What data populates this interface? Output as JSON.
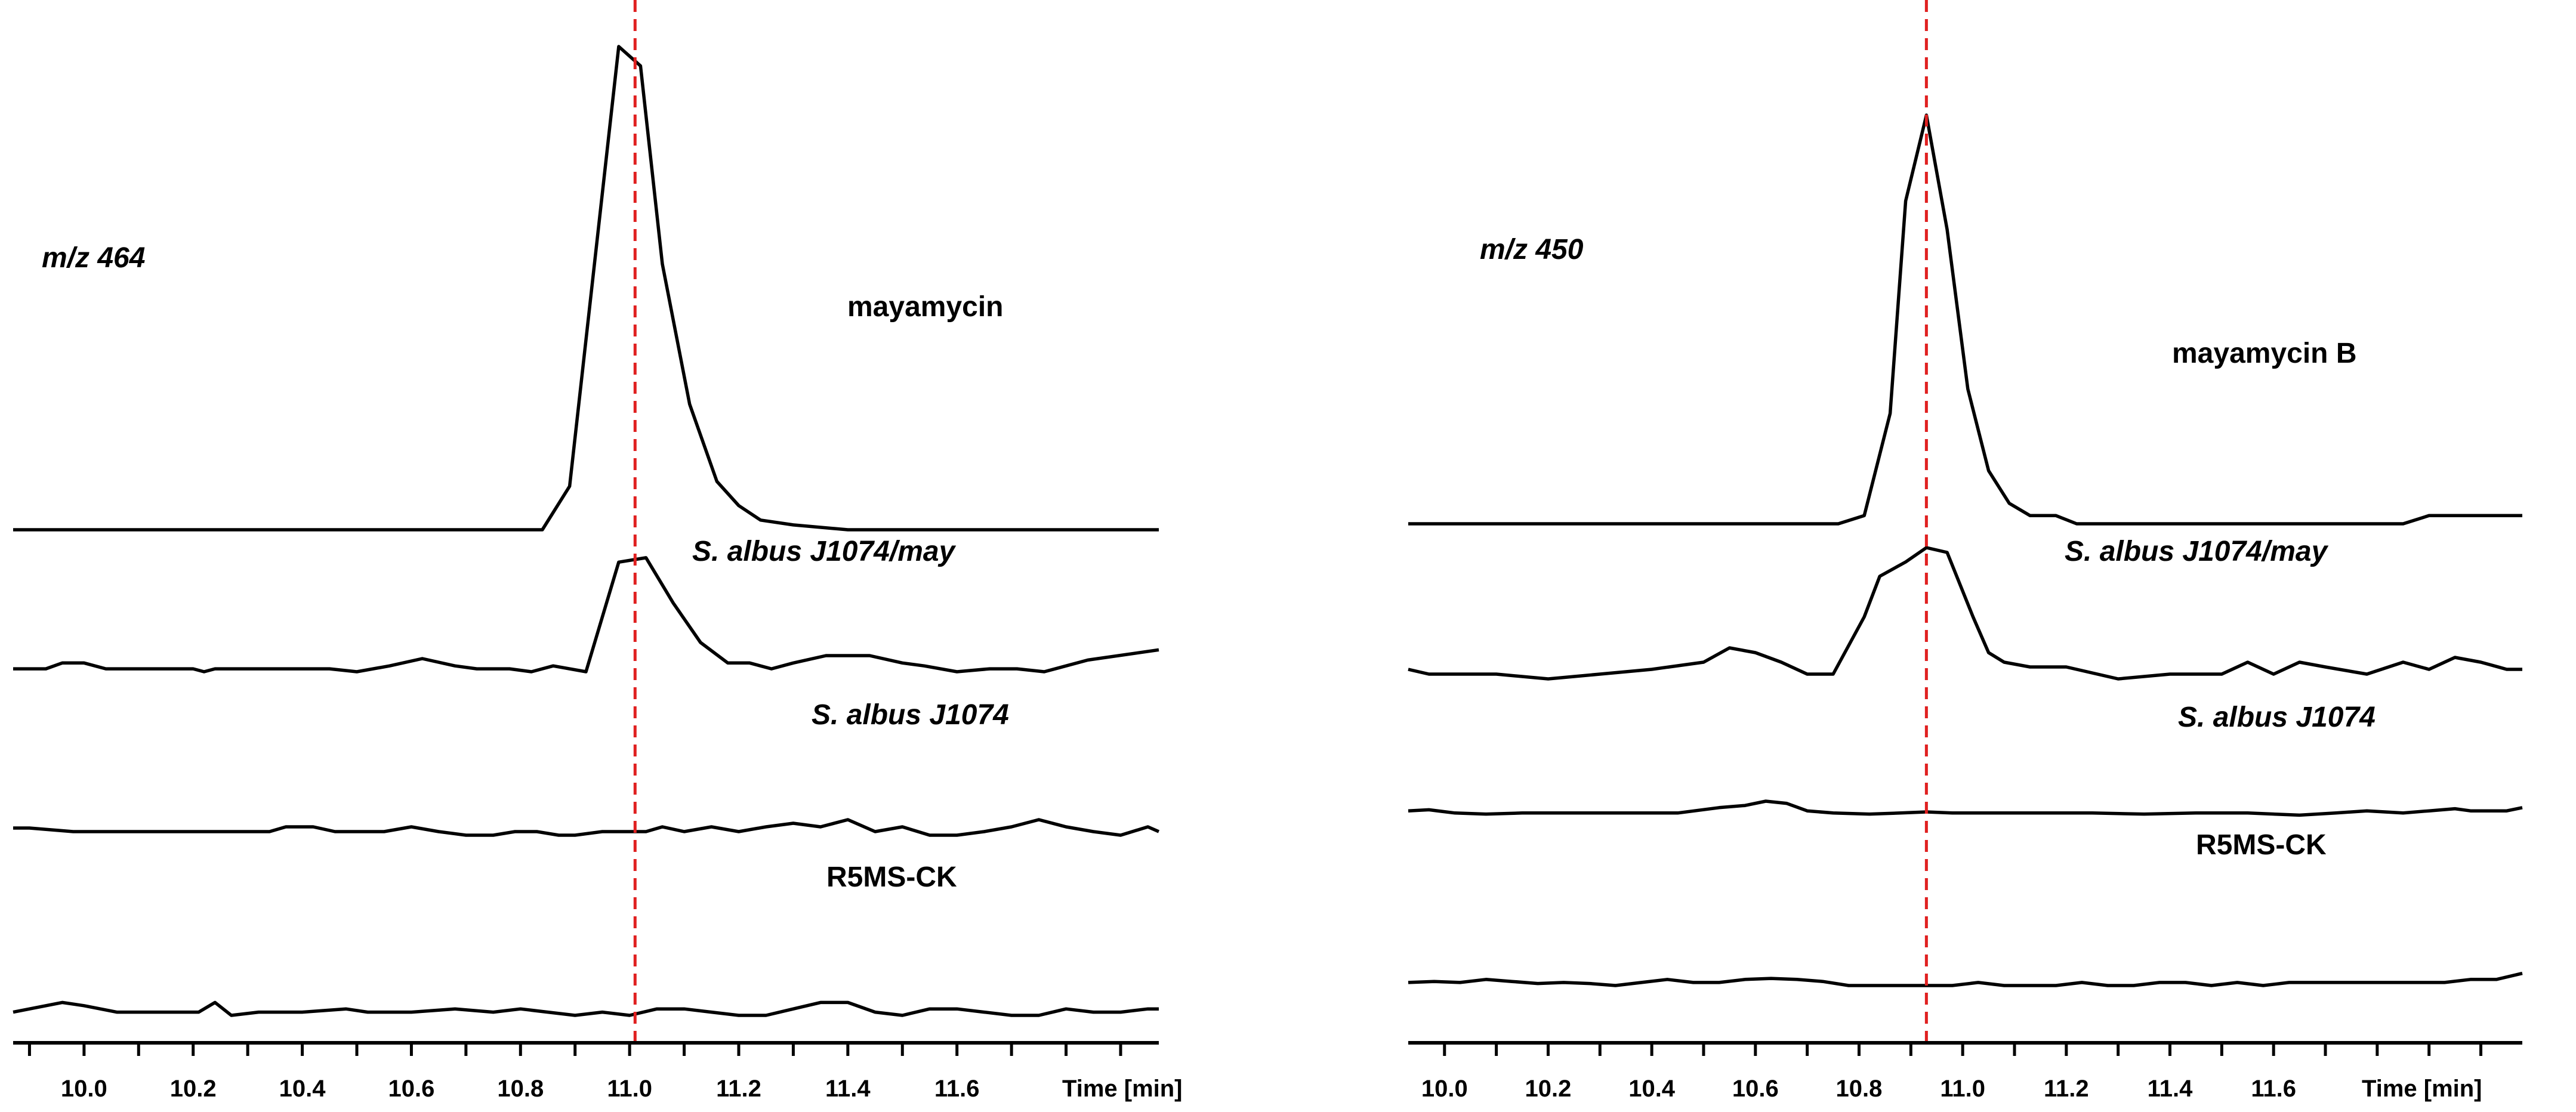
{
  "chart_data": [
    {
      "type": "line",
      "mz_label": "m/z 464",
      "xlabel": "Time [min]",
      "xlim": [
        9.87,
        11.97
      ],
      "x_ticks": [
        10.0,
        10.2,
        10.4,
        10.6,
        10.8,
        11.0,
        11.2,
        11.4,
        11.6
      ],
      "tick_labels": [
        "10.0",
        "10.2",
        "10.4",
        "10.6",
        "10.8",
        "11.0",
        "11.2",
        "11.4",
        "11.6"
      ],
      "marker_x": 11.01,
      "marker_color": "#e02020",
      "series": [
        {
          "name": "mayamycin",
          "x": [
            9.87,
            10.84,
            10.89,
            10.98,
            11.02,
            11.06,
            11.11,
            11.16,
            11.2,
            11.24,
            11.3,
            11.4,
            11.97
          ],
          "y": [
            0,
            0,
            0.09,
            1.0,
            0.96,
            0.55,
            0.26,
            0.1,
            0.05,
            0.02,
            0.01,
            0,
            0
          ]
        },
        {
          "name": "S. albus J1074/may",
          "x": [
            9.87,
            9.93,
            9.96,
            10.0,
            10.04,
            10.1,
            10.2,
            10.22,
            10.24,
            10.3,
            10.4,
            10.45,
            10.5,
            10.56,
            10.62,
            10.68,
            10.72,
            10.78,
            10.82,
            10.86,
            10.92,
            10.98,
            11.03,
            11.08,
            11.13,
            11.18,
            11.22,
            11.26,
            11.3,
            11.36,
            11.44,
            11.5,
            11.54,
            11.6,
            11.66,
            11.71,
            11.76,
            11.84,
            11.97
          ],
          "y": [
            0.02,
            0.02,
            0.06,
            0.06,
            0.02,
            0.02,
            0.02,
            0.0,
            0.02,
            0.02,
            0.02,
            0.02,
            0.0,
            0.04,
            0.09,
            0.04,
            0.02,
            0.02,
            0.0,
            0.04,
            0.0,
            0.75,
            0.78,
            0.47,
            0.2,
            0.06,
            0.06,
            0.02,
            0.06,
            0.11,
            0.11,
            0.06,
            0.04,
            0.0,
            0.02,
            0.02,
            0.0,
            0.08,
            0.15
          ]
        },
        {
          "name": "S. albus J1074",
          "x": [
            9.87,
            9.9,
            9.98,
            10.06,
            10.15,
            10.22,
            10.3,
            10.34,
            10.37,
            10.42,
            10.46,
            10.5,
            10.55,
            10.6,
            10.65,
            10.7,
            10.75,
            10.79,
            10.83,
            10.87,
            10.9,
            10.95,
            11.0,
            11.03,
            11.06,
            11.1,
            11.15,
            11.2,
            11.25,
            11.3,
            11.35,
            11.4,
            11.45,
            11.5,
            11.55,
            11.6,
            11.65,
            11.7,
            11.75,
            11.8,
            11.85,
            11.9,
            11.95,
            11.97
          ],
          "y": [
            0.06,
            0.06,
            0.03,
            0.03,
            0.03,
            0.03,
            0.03,
            0.03,
            0.07,
            0.07,
            0.03,
            0.03,
            0.03,
            0.07,
            0.03,
            0.0,
            0.0,
            0.03,
            0.03,
            0.0,
            0.0,
            0.03,
            0.03,
            0.03,
            0.07,
            0.03,
            0.07,
            0.03,
            0.07,
            0.1,
            0.07,
            0.13,
            0.03,
            0.07,
            0.0,
            0.0,
            0.03,
            0.07,
            0.13,
            0.07,
            0.03,
            0.0,
            0.07,
            0.03
          ]
        },
        {
          "name": "R5MS-CK",
          "x": [
            9.87,
            9.93,
            9.96,
            10.0,
            10.06,
            10.15,
            10.21,
            10.24,
            10.27,
            10.32,
            10.4,
            10.48,
            10.52,
            10.6,
            10.68,
            10.75,
            10.8,
            10.85,
            10.9,
            10.95,
            11.0,
            11.05,
            11.1,
            11.15,
            11.2,
            11.25,
            11.3,
            11.35,
            11.4,
            11.45,
            11.5,
            11.55,
            11.6,
            11.65,
            11.7,
            11.75,
            11.8,
            11.85,
            11.9,
            11.95,
            11.97
          ],
          "y": [
            0.03,
            0.09,
            0.12,
            0.09,
            0.03,
            0.03,
            0.03,
            0.12,
            0.0,
            0.03,
            0.03,
            0.06,
            0.03,
            0.03,
            0.06,
            0.03,
            0.06,
            0.03,
            0.0,
            0.03,
            0.0,
            0.06,
            0.06,
            0.03,
            0.0,
            0.0,
            0.06,
            0.12,
            0.12,
            0.03,
            0.0,
            0.06,
            0.06,
            0.03,
            0.0,
            0.0,
            0.06,
            0.03,
            0.03,
            0.06,
            0.06
          ]
        }
      ]
    },
    {
      "type": "line",
      "mz_label": "m/z 450",
      "xlabel": "Time [min]",
      "xlim": [
        9.93,
        12.08
      ],
      "x_ticks": [
        10.0,
        10.2,
        10.4,
        10.6,
        10.8,
        11.0,
        11.2,
        11.4,
        11.6
      ],
      "tick_labels": [
        "10.0",
        "10.2",
        "10.4",
        "10.6",
        "10.8",
        "11.0",
        "11.2",
        "11.4",
        "11.6"
      ],
      "marker_x": 10.93,
      "marker_color": "#e02020",
      "series": [
        {
          "name": "mayamycin B",
          "x": [
            9.93,
            10.76,
            10.81,
            10.86,
            10.89,
            10.93,
            10.97,
            11.01,
            11.05,
            11.09,
            11.13,
            11.18,
            11.22,
            11.3,
            11.85,
            11.9,
            12.08
          ],
          "y": [
            0,
            0,
            0.02,
            0.27,
            0.79,
            1.0,
            0.72,
            0.33,
            0.13,
            0.05,
            0.02,
            0.02,
            0,
            0,
            0,
            0.02,
            0.02
          ]
        },
        {
          "name": "S. albus J1074/may",
          "x": [
            9.93,
            9.97,
            10.1,
            10.2,
            10.3,
            10.4,
            10.5,
            10.55,
            10.6,
            10.65,
            10.7,
            10.75,
            10.81,
            10.84,
            10.89,
            10.93,
            10.97,
            11.02,
            11.05,
            11.08,
            11.13,
            11.2,
            11.3,
            11.4,
            11.5,
            11.55,
            11.6,
            11.65,
            11.7,
            11.78,
            11.85,
            11.9,
            11.95,
            12.0,
            12.05,
            12.08
          ],
          "y": [
            0.06,
            0.04,
            0.04,
            0.02,
            0.04,
            0.06,
            0.09,
            0.15,
            0.13,
            0.09,
            0.04,
            0.04,
            0.28,
            0.45,
            0.51,
            0.57,
            0.55,
            0.28,
            0.13,
            0.09,
            0.07,
            0.07,
            0.02,
            0.04,
            0.04,
            0.09,
            0.04,
            0.09,
            0.07,
            0.04,
            0.09,
            0.06,
            0.11,
            0.09,
            0.06,
            0.06
          ]
        },
        {
          "name": "S. albus J1074",
          "x": [
            9.93,
            9.97,
            10.02,
            10.08,
            10.15,
            10.25,
            10.35,
            10.45,
            10.53,
            10.58,
            10.62,
            10.66,
            10.7,
            10.75,
            10.82,
            10.88,
            10.93,
            10.98,
            11.05,
            11.15,
            11.25,
            11.35,
            11.45,
            11.55,
            11.65,
            11.72,
            11.78,
            11.85,
            11.9,
            11.95,
            11.98,
            12.05,
            12.08
          ],
          "y": [
            0.06,
            0.07,
            0.04,
            0.03,
            0.04,
            0.04,
            0.04,
            0.04,
            0.09,
            0.11,
            0.15,
            0.13,
            0.06,
            0.04,
            0.03,
            0.04,
            0.05,
            0.04,
            0.04,
            0.04,
            0.04,
            0.03,
            0.04,
            0.04,
            0.02,
            0.04,
            0.06,
            0.04,
            0.06,
            0.08,
            0.06,
            0.06,
            0.09
          ]
        },
        {
          "name": "R5MS-CK",
          "x": [
            9.93,
            9.98,
            10.03,
            10.08,
            10.13,
            10.18,
            10.23,
            10.28,
            10.33,
            10.38,
            10.43,
            10.48,
            10.53,
            10.58,
            10.63,
            10.68,
            10.73,
            10.78,
            10.83,
            10.88,
            10.93,
            10.98,
            11.03,
            11.08,
            11.13,
            11.18,
            11.23,
            11.28,
            11.33,
            11.38,
            11.43,
            11.48,
            11.53,
            11.58,
            11.63,
            11.68,
            11.73,
            11.78,
            11.83,
            11.88,
            11.93,
            11.98,
            12.03,
            12.08
          ],
          "y": [
            0.03,
            0.04,
            0.03,
            0.06,
            0.04,
            0.02,
            0.03,
            0.02,
            0.0,
            0.03,
            0.06,
            0.03,
            0.03,
            0.06,
            0.07,
            0.06,
            0.04,
            0.0,
            0.0,
            0.0,
            0.0,
            0.0,
            0.03,
            0.0,
            0.0,
            0.0,
            0.03,
            0.0,
            0.0,
            0.03,
            0.03,
            0.0,
            0.03,
            0.0,
            0.03,
            0.03,
            0.03,
            0.03,
            0.03,
            0.03,
            0.03,
            0.06,
            0.06,
            0.12
          ]
        }
      ]
    }
  ]
}
